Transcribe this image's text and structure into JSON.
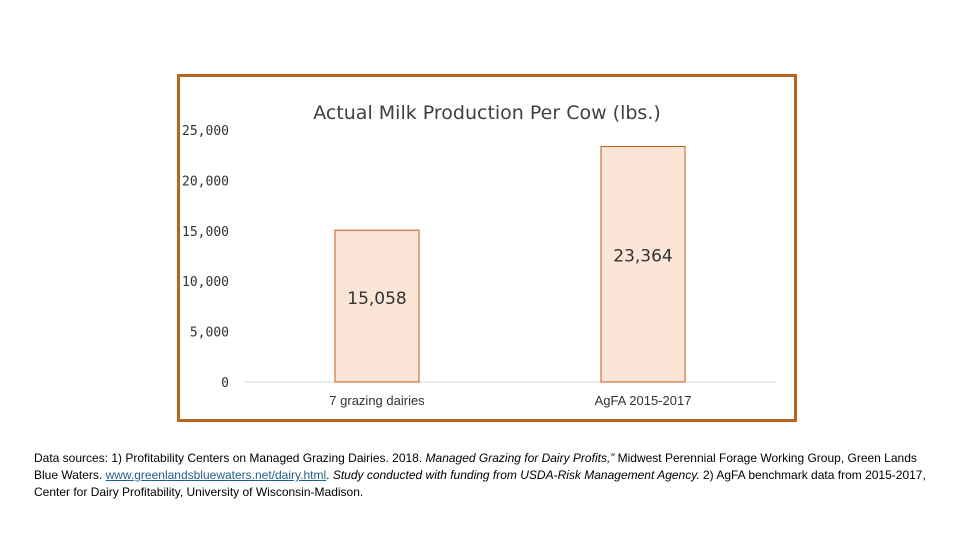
{
  "chart_data": {
    "type": "bar",
    "title": "Actual Milk Production Per Cow (lbs.)",
    "categories": [
      "7 grazing dairies",
      "AgFA 2015-2017"
    ],
    "values": [
      15058,
      23364
    ],
    "data_labels": [
      "15,058",
      "23,364"
    ],
    "yticks": [
      {
        "value": 0,
        "label": "0"
      },
      {
        "value": 5000,
        "label": "5,000"
      },
      {
        "value": 10000,
        "label": "10,000"
      },
      {
        "value": 15000,
        "label": "15,000"
      },
      {
        "value": 20000,
        "label": "20,000"
      },
      {
        "value": 25000,
        "label": "25,000"
      }
    ],
    "ylim": [
      0,
      25000
    ],
    "grid": false,
    "legend": "none",
    "bar_fill": "#fbe5d6",
    "bar_stroke": "#c55a11",
    "frame_color": "#b5651d"
  },
  "sources": {
    "part1": "Data sources: 1) Profitability Centers on Managed Grazing Dairies. 2018. ",
    "part2_italic": "Managed Grazing for Dairy Profits,” ",
    "part3": "Midwest Perennial Forage Working Group, Green Lands Blue Waters. ",
    "link": "www.greenlandsbluewaters.net/dairy.html",
    "part4": ". ",
    "part5_italic": "Study conducted with funding from USDA-Risk Management Agency.",
    "part6": " 2) AgFA benchmark data from 2015-2017, Center for Dairy Profitability, University of Wisconsin-Madison."
  }
}
